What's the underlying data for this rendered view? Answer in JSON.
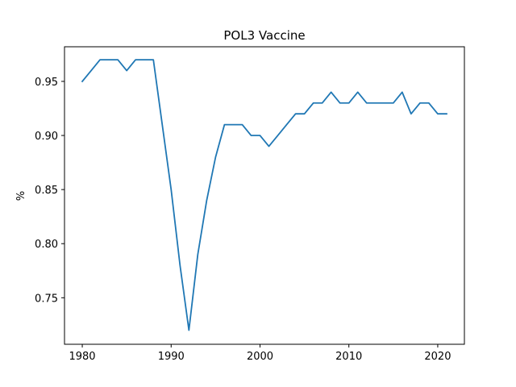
{
  "chart_data": {
    "type": "line",
    "title": "POL3 Vaccine",
    "xlabel": "",
    "ylabel": "%",
    "xlim": [
      1978,
      2023
    ],
    "ylim": [
      0.707,
      0.982
    ],
    "xticks": [
      1980,
      1990,
      2000,
      2010,
      2020
    ],
    "yticks": [
      0.75,
      0.8,
      0.85,
      0.9,
      0.95
    ],
    "ytick_labels": [
      "0.75",
      "0.80",
      "0.85",
      "0.90",
      "0.95"
    ],
    "grid": false,
    "line_color": "#1f77b4",
    "series": [
      {
        "x": [
          1980,
          1981,
          1982,
          1983,
          1984,
          1985,
          1986,
          1987,
          1988,
          1989,
          1990,
          1991,
          1992,
          1993,
          1994,
          1995,
          1996,
          1997,
          1998,
          1999,
          2000,
          2001,
          2002,
          2003,
          2004,
          2005,
          2006,
          2007,
          2008,
          2009,
          2010,
          2011,
          2012,
          2013,
          2014,
          2015,
          2016,
          2017,
          2018,
          2019,
          2020,
          2021
        ],
        "values": [
          0.95,
          0.96,
          0.97,
          0.97,
          0.97,
          0.96,
          0.97,
          0.97,
          0.97,
          0.91,
          0.85,
          0.78,
          0.72,
          0.79,
          0.84,
          0.88,
          0.91,
          0.91,
          0.91,
          0.9,
          0.9,
          0.89,
          0.9,
          0.91,
          0.92,
          0.92,
          0.93,
          0.93,
          0.94,
          0.93,
          0.93,
          0.94,
          0.93,
          0.93,
          0.93,
          0.93,
          0.94,
          0.92,
          0.93,
          0.93,
          0.92,
          0.92
        ]
      }
    ]
  }
}
